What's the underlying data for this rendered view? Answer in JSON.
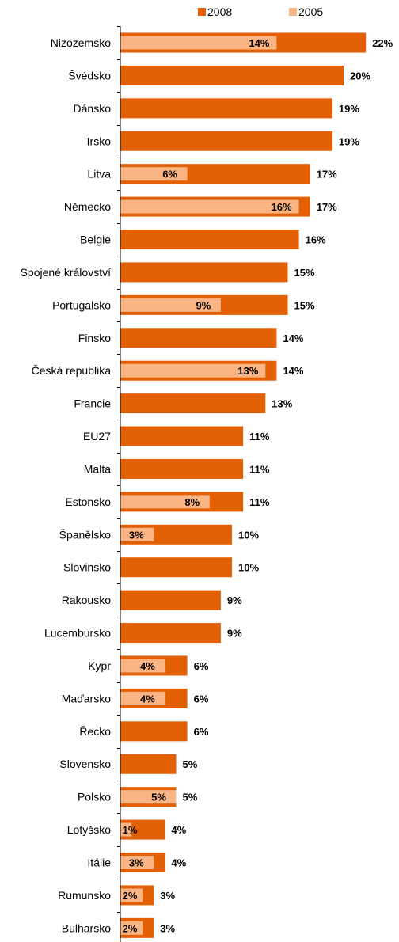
{
  "chart_data": {
    "type": "bar",
    "orientation": "horizontal",
    "title": "",
    "xlabel": "",
    "ylabel": "",
    "xlim": [
      0,
      22
    ],
    "grid": false,
    "legend_placement": "top-right",
    "value_suffix": "%",
    "categories": [
      "Nizozemsko",
      "Švédsko",
      "Dánsko",
      "Irsko",
      "Litva",
      "Německo",
      "Belgie",
      "Spojené království",
      "Portugalsko",
      "Finsko",
      "Česká republika",
      "Francie",
      "EU27",
      "Malta",
      "Estonsko",
      "Španělsko",
      "Slovinsko",
      "Rakousko",
      "Lucembursko",
      "Kypr",
      "Maďarsko",
      "Řecko",
      "Slovensko",
      "Polsko",
      "Lotyšsko",
      "Itálie",
      "Rumunsko",
      "Bulharsko"
    ],
    "series": [
      {
        "name": "2008",
        "color": "#E36005",
        "values": [
          22,
          20,
          19,
          19,
          17,
          17,
          16,
          15,
          15,
          14,
          14,
          13,
          11,
          11,
          11,
          10,
          10,
          9,
          9,
          6,
          6,
          6,
          5,
          5,
          4,
          4,
          3,
          3
        ]
      },
      {
        "name": "2005",
        "color": "#FBB584",
        "values": [
          14,
          null,
          null,
          null,
          6,
          16,
          null,
          null,
          9,
          null,
          13,
          null,
          null,
          null,
          8,
          3,
          null,
          null,
          null,
          4,
          4,
          null,
          null,
          5,
          1,
          3,
          2,
          2
        ]
      }
    ]
  }
}
